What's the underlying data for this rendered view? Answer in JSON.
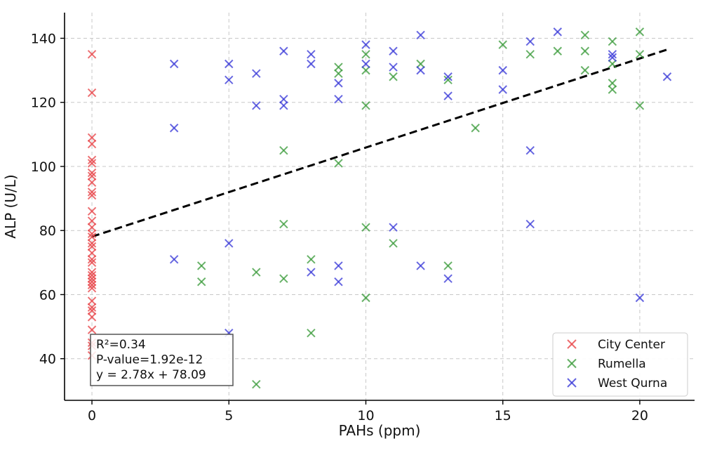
{
  "chart_data": {
    "type": "scatter",
    "title": "",
    "xlabel": "PAHs (ppm)",
    "ylabel": "ALP (U/L)",
    "xlim": [
      -1,
      22
    ],
    "ylim": [
      27,
      148
    ],
    "xticks": [
      0,
      5,
      10,
      15,
      20
    ],
    "yticks": [
      40,
      60,
      80,
      100,
      120,
      140
    ],
    "grid": true,
    "legend_position": "bottom-right",
    "marker": "x",
    "series": [
      {
        "name": "City Center",
        "color": "#e8474a",
        "points": [
          [
            0,
            135
          ],
          [
            0,
            123
          ],
          [
            0,
            109
          ],
          [
            0,
            107
          ],
          [
            0,
            102
          ],
          [
            0,
            101
          ],
          [
            0,
            98
          ],
          [
            0,
            97
          ],
          [
            0,
            95
          ],
          [
            0,
            92
          ],
          [
            0,
            91
          ],
          [
            0,
            86
          ],
          [
            0,
            83
          ],
          [
            0,
            81
          ],
          [
            0,
            79
          ],
          [
            0,
            78
          ],
          [
            0,
            76
          ],
          [
            0,
            75
          ],
          [
            0,
            73
          ],
          [
            0,
            71
          ],
          [
            0,
            70
          ],
          [
            0,
            67
          ],
          [
            0,
            66
          ],
          [
            0,
            65
          ],
          [
            0,
            64
          ],
          [
            0,
            63
          ],
          [
            0,
            62
          ],
          [
            0,
            58
          ],
          [
            0,
            56
          ],
          [
            0,
            55
          ],
          [
            0,
            53
          ],
          [
            0,
            49
          ],
          [
            0,
            45
          ],
          [
            0,
            44
          ],
          [
            0,
            41
          ]
        ]
      },
      {
        "name": "Rumella",
        "color": "#3e9c3e",
        "points": [
          [
            4,
            69
          ],
          [
            4,
            64
          ],
          [
            6,
            67
          ],
          [
            6,
            32
          ],
          [
            7,
            105
          ],
          [
            7,
            82
          ],
          [
            7,
            65
          ],
          [
            8,
            71
          ],
          [
            8,
            48
          ],
          [
            9,
            131
          ],
          [
            9,
            129
          ],
          [
            9,
            101
          ],
          [
            10,
            135
          ],
          [
            10,
            130
          ],
          [
            10,
            119
          ],
          [
            10,
            81
          ],
          [
            10,
            59
          ],
          [
            11,
            128
          ],
          [
            11,
            76
          ],
          [
            12,
            132
          ],
          [
            13,
            127
          ],
          [
            13,
            69
          ],
          [
            14,
            112
          ],
          [
            15,
            138
          ],
          [
            16,
            135
          ],
          [
            17,
            136
          ],
          [
            18,
            141
          ],
          [
            18,
            136
          ],
          [
            18,
            130
          ],
          [
            19,
            139
          ],
          [
            19,
            132
          ],
          [
            19,
            126
          ],
          [
            19,
            124
          ],
          [
            20,
            142
          ],
          [
            20,
            135
          ],
          [
            20,
            119
          ]
        ]
      },
      {
        "name": "West Qurna",
        "color": "#3c3cd8",
        "points": [
          [
            3,
            132
          ],
          [
            3,
            112
          ],
          [
            3,
            71
          ],
          [
            5,
            132
          ],
          [
            5,
            127
          ],
          [
            5,
            76
          ],
          [
            5,
            48
          ],
          [
            6,
            129
          ],
          [
            6,
            119
          ],
          [
            7,
            136
          ],
          [
            7,
            121
          ],
          [
            7,
            119
          ],
          [
            8,
            135
          ],
          [
            8,
            132
          ],
          [
            8,
            67
          ],
          [
            9,
            126
          ],
          [
            9,
            121
          ],
          [
            9,
            69
          ],
          [
            9,
            64
          ],
          [
            10,
            138
          ],
          [
            10,
            132
          ],
          [
            11,
            136
          ],
          [
            11,
            131
          ],
          [
            11,
            81
          ],
          [
            12,
            141
          ],
          [
            12,
            130
          ],
          [
            12,
            69
          ],
          [
            13,
            128
          ],
          [
            13,
            122
          ],
          [
            13,
            65
          ],
          [
            15,
            130
          ],
          [
            15,
            124
          ],
          [
            16,
            139
          ],
          [
            16,
            105
          ],
          [
            16,
            82
          ],
          [
            17,
            142
          ],
          [
            19,
            135
          ],
          [
            19,
            134
          ],
          [
            20,
            59
          ],
          [
            21,
            128
          ]
        ]
      }
    ],
    "trendline": {
      "style": "dashed",
      "color": "#000000",
      "slope": 2.78,
      "intercept": 78.09,
      "x_range": [
        0,
        21
      ]
    },
    "annotation": {
      "lines": [
        "R²=0.34",
        "P-value=1.92e-12",
        "y = 2.78x + 78.09"
      ],
      "position": "bottom-left"
    }
  }
}
